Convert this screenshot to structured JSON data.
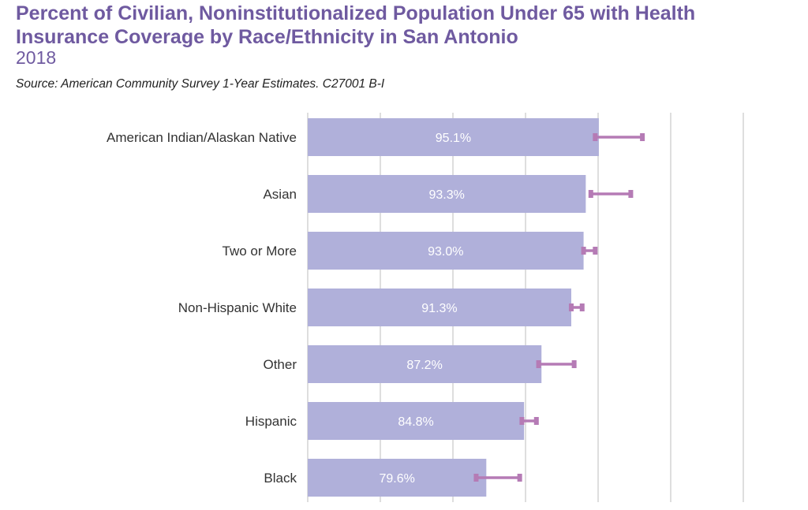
{
  "header": {
    "title": "Percent of Civilian, Noninstitutionalized Population Under 65 with Health Insurance Coverage by Race/Ethnicity in San Antonio",
    "year": "2018",
    "source": "Source: American Community Survey 1-Year Estimates. C27001 B-I"
  },
  "colors": {
    "bar": "#b0b0da",
    "error_bar": "#b57bb5",
    "grid": "#d4d4d4",
    "title": "#6f5aa0"
  },
  "chart_data": {
    "type": "bar",
    "orientation": "horizontal",
    "title": "Percent of Civilian, Noninstitutionalized Population Under 65 with Health Insurance Coverage by Race/Ethnicity in San Antonio",
    "subtitle": "2018",
    "xlim": [
      55,
      115
    ],
    "x_gridlines": [
      55,
      65,
      75,
      85,
      95,
      105,
      115
    ],
    "grid": true,
    "categories": [
      "American Indian/Alaskan Native",
      "Asian",
      "Two or More",
      "Non-Hispanic White",
      "Other",
      "Hispanic",
      "Black"
    ],
    "values": [
      95.1,
      93.3,
      93.0,
      91.3,
      87.2,
      84.8,
      79.6
    ],
    "value_labels": [
      "95.1%",
      "93.3%",
      "93.0%",
      "91.3%",
      "87.2%",
      "84.8%",
      "79.6%"
    ],
    "error_bars": [
      [
        94.6,
        101.1
      ],
      [
        94.0,
        99.5
      ],
      [
        93.0,
        94.6
      ],
      [
        91.3,
        92.8
      ],
      [
        86.8,
        91.7
      ],
      [
        84.5,
        86.5
      ],
      [
        78.2,
        84.2
      ]
    ]
  }
}
